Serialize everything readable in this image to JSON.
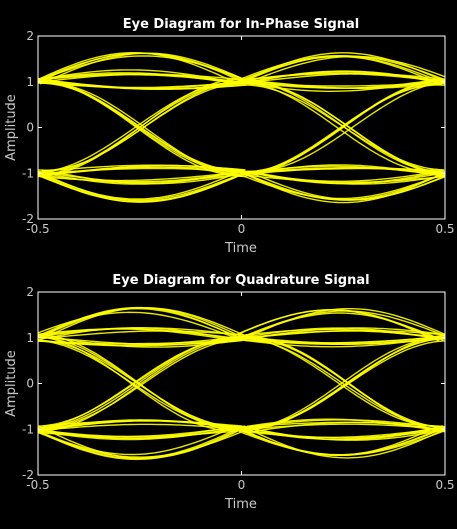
{
  "colors": {
    "background": "#000000",
    "axes_box": "#ffffff",
    "tick_text": "#c8c8c8",
    "trace": "#ffff00"
  },
  "chart_data": [
    {
      "type": "line",
      "title": "Eye Diagram for In-Phase Signal",
      "xlabel": "Time",
      "ylabel": "Amplitude",
      "xlim": [
        -0.5,
        0.5
      ],
      "ylim": [
        -2,
        2
      ],
      "xticks": [
        -0.5,
        0,
        0.5
      ],
      "xtick_labels": [
        "-0.5",
        "0",
        "0.5"
      ],
      "yticks": [
        -2,
        -1,
        0,
        1,
        2
      ],
      "ytick_labels": [
        "-2",
        "-1",
        "0",
        "1",
        "2"
      ],
      "grid": false,
      "trace_color": "#ffff00",
      "eye_crossings_x": [
        -0.5,
        0,
        0.5
      ],
      "eye_centers_x": [
        -0.25,
        0.25
      ],
      "rails": [
        -1,
        1
      ],
      "peak_overshoot_y": [
        1.65,
        -1.65
      ],
      "curve_families": [
        {
          "name": "1→1 (overshoot)",
          "from": 1,
          "to": 1,
          "mid": 1.6
        },
        {
          "name": "1→1",
          "from": 1,
          "to": 1,
          "mid": 1.2
        },
        {
          "name": "1→1 (dip)",
          "from": 1,
          "to": 1,
          "mid": 0.85
        },
        {
          "name": "-1→-1 (overshoot)",
          "from": -1,
          "to": -1,
          "mid": -1.6
        },
        {
          "name": "-1→-1",
          "from": -1,
          "to": -1,
          "mid": -1.2
        },
        {
          "name": "-1→-1 (dip)",
          "from": -1,
          "to": -1,
          "mid": -0.85
        },
        {
          "name": "1→-1",
          "from": 1,
          "to": -1,
          "mid": 0
        },
        {
          "name": "-1→1",
          "from": -1,
          "to": 1,
          "mid": 0
        }
      ]
    },
    {
      "type": "line",
      "title": "Eye Diagram for Quadrature Signal",
      "xlabel": "Time",
      "ylabel": "Amplitude",
      "xlim": [
        -0.5,
        0.5
      ],
      "ylim": [
        -2,
        2
      ],
      "xticks": [
        -0.5,
        0,
        0.5
      ],
      "xtick_labels": [
        "-0.5",
        "0",
        "0.5"
      ],
      "yticks": [
        -2,
        -1,
        0,
        1,
        2
      ],
      "ytick_labels": [
        "-2",
        "-1",
        "0",
        "1",
        "2"
      ],
      "grid": false,
      "trace_color": "#ffff00",
      "eye_crossings_x": [
        -0.5,
        0,
        0.5
      ],
      "eye_centers_x": [
        -0.25,
        0.25
      ],
      "rails": [
        -1,
        1
      ],
      "peak_overshoot_y": [
        1.65,
        -1.65
      ],
      "curve_families": [
        {
          "name": "1→1 (overshoot)",
          "from": 1,
          "to": 1,
          "mid": 1.6
        },
        {
          "name": "1→1",
          "from": 1,
          "to": 1,
          "mid": 1.2
        },
        {
          "name": "1→1 (dip)",
          "from": 1,
          "to": 1,
          "mid": 0.85
        },
        {
          "name": "-1→-1 (overshoot)",
          "from": -1,
          "to": -1,
          "mid": -1.6
        },
        {
          "name": "-1→-1",
          "from": -1,
          "to": -1,
          "mid": -1.2
        },
        {
          "name": "-1→-1 (dip)",
          "from": -1,
          "to": -1,
          "mid": -0.85
        },
        {
          "name": "1→-1",
          "from": 1,
          "to": -1,
          "mid": 0
        },
        {
          "name": "-1→1",
          "from": -1,
          "to": 1,
          "mid": 0
        }
      ]
    }
  ]
}
